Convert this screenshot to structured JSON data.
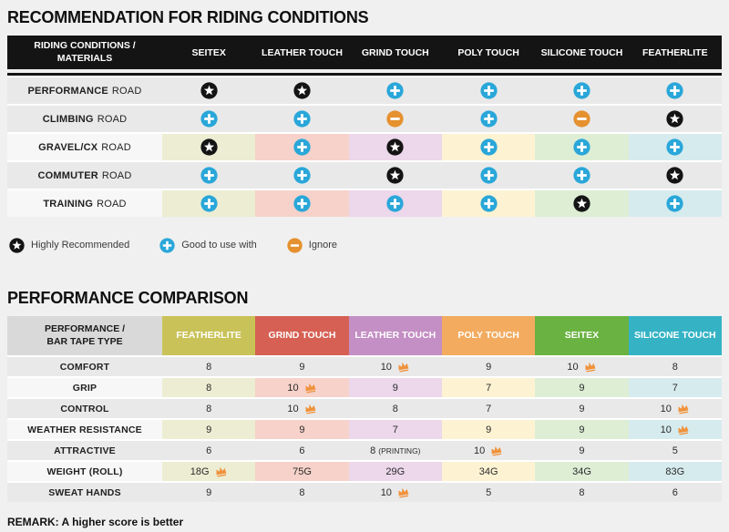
{
  "colors": {
    "page_bg": "#f0f0f0",
    "table_header_bg": "#141414",
    "row_gray": "#e9e9e9",
    "row_label_light": "#f7f7f7",
    "star": "#141414",
    "plus": "#2aa7d9",
    "minus": "#e5912f",
    "crown": "#f0923b",
    "t2_label_header_bg": "#d9d9d9"
  },
  "table1": {
    "title": "RECOMMENDATION FOR RIDING CONDITIONS",
    "header_label": "RIDING CONDITIONS /\nMATERIALS",
    "columns": [
      "SEITEX",
      "LEATHER TOUCH",
      "GRIND TOUCH",
      "POLY TOUCH",
      "SILICONE TOUCH",
      "FEATHERLITE"
    ],
    "column_tints": [
      "#ecedd2",
      "#f6d2ca",
      "#ecd7eb",
      "#fdf3d2",
      "#ddeed5",
      "#d6ebee"
    ],
    "rows": [
      {
        "label_bold": "PERFORMANCE",
        "label_rest": "ROAD",
        "tinted": false,
        "cells": [
          "star",
          "star",
          "plus",
          "plus",
          "plus",
          "plus"
        ]
      },
      {
        "label_bold": "CLIMBING",
        "label_rest": "ROAD",
        "tinted": false,
        "cells": [
          "plus",
          "plus",
          "minus",
          "plus",
          "minus",
          "star"
        ]
      },
      {
        "label_bold": "GRAVEL/CX",
        "label_rest": "ROAD",
        "tinted": true,
        "cells": [
          "star",
          "plus",
          "star",
          "plus",
          "plus",
          "plus"
        ]
      },
      {
        "label_bold": "COMMUTER",
        "label_rest": "ROAD",
        "tinted": false,
        "cells": [
          "plus",
          "plus",
          "star",
          "plus",
          "plus",
          "star"
        ]
      },
      {
        "label_bold": "TRAINING",
        "label_rest": "ROAD",
        "tinted": true,
        "cells": [
          "plus",
          "plus",
          "plus",
          "plus",
          "star",
          "plus"
        ]
      }
    ],
    "legend": [
      {
        "icon": "star",
        "label": "Highly Recommended"
      },
      {
        "icon": "plus",
        "label": "Good to use with"
      },
      {
        "icon": "minus",
        "label": "Ignore"
      }
    ]
  },
  "table2": {
    "title": "PERFORMANCE COMPARISON",
    "header_label": "PERFORMANCE /\nBAR TAPE TYPE",
    "columns": [
      {
        "name": "FEATHERLITE",
        "color": "#c9c258",
        "tint": "#ecedd2"
      },
      {
        "name": "GRIND TOUCH",
        "color": "#d66054",
        "tint": "#f6d2ca"
      },
      {
        "name": "LEATHER TOUCH",
        "color": "#c38fc4",
        "tint": "#ecd7eb"
      },
      {
        "name": "POLY TOUCH",
        "color": "#f2ab5f",
        "tint": "#fdf3d2"
      },
      {
        "name": "SEITEX",
        "color": "#6ab342",
        "tint": "#ddeed5"
      },
      {
        "name": "SILICONE TOUCH",
        "color": "#35b3c5",
        "tint": "#d6ebee"
      }
    ],
    "rows": [
      {
        "label": "COMFORT",
        "tinted": false,
        "cells": [
          {
            "v": "8"
          },
          {
            "v": "9"
          },
          {
            "v": "10",
            "crown": true
          },
          {
            "v": "9"
          },
          {
            "v": "10",
            "crown": true
          },
          {
            "v": "8"
          }
        ]
      },
      {
        "label": "GRIP",
        "tinted": true,
        "cells": [
          {
            "v": "8"
          },
          {
            "v": "10",
            "crown": true
          },
          {
            "v": "9"
          },
          {
            "v": "7"
          },
          {
            "v": "9"
          },
          {
            "v": "7"
          }
        ]
      },
      {
        "label": "CONTROL",
        "tinted": false,
        "cells": [
          {
            "v": "8"
          },
          {
            "v": "10",
            "crown": true
          },
          {
            "v": "8"
          },
          {
            "v": "7"
          },
          {
            "v": "9"
          },
          {
            "v": "10",
            "crown": true
          }
        ]
      },
      {
        "label": "WEATHER RESISTANCE",
        "tinted": true,
        "cells": [
          {
            "v": "9"
          },
          {
            "v": "9"
          },
          {
            "v": "7"
          },
          {
            "v": "9"
          },
          {
            "v": "9"
          },
          {
            "v": "10",
            "crown": true
          }
        ]
      },
      {
        "label": "ATTRACTIVE",
        "tinted": false,
        "cells": [
          {
            "v": "6"
          },
          {
            "v": "6"
          },
          {
            "v": "8",
            "suffix": "(PRINTING)"
          },
          {
            "v": "10",
            "crown": true
          },
          {
            "v": "9"
          },
          {
            "v": "5"
          }
        ]
      },
      {
        "label": "WEIGHT (ROLL)",
        "tinted": true,
        "cells": [
          {
            "v": "18G",
            "crown": true
          },
          {
            "v": "75G"
          },
          {
            "v": "29G"
          },
          {
            "v": "34G"
          },
          {
            "v": "34G"
          },
          {
            "v": "83G"
          }
        ]
      },
      {
        "label": "SWEAT HANDS",
        "tinted": false,
        "cells": [
          {
            "v": "9"
          },
          {
            "v": "8"
          },
          {
            "v": "10",
            "crown": true
          },
          {
            "v": "5"
          },
          {
            "v": "8"
          },
          {
            "v": "6"
          }
        ]
      }
    ],
    "remark": "REMARK: A higher score is better"
  },
  "chart_data": [
    {
      "type": "table",
      "title": "RECOMMENDATION FOR RIDING CONDITIONS",
      "columns": [
        "RIDING CONDITIONS / MATERIALS",
        "SEITEX",
        "LEATHER TOUCH",
        "GRIND TOUCH",
        "POLY TOUCH",
        "SILICONE TOUCH",
        "FEATHERLITE"
      ],
      "legend": {
        "star": "Highly Recommended",
        "plus": "Good to use with",
        "minus": "Ignore"
      },
      "rows": [
        [
          "PERFORMANCE ROAD",
          "star",
          "star",
          "plus",
          "plus",
          "plus",
          "plus"
        ],
        [
          "CLIMBING ROAD",
          "plus",
          "plus",
          "minus",
          "plus",
          "minus",
          "star"
        ],
        [
          "GRAVEL/CX ROAD",
          "star",
          "plus",
          "star",
          "plus",
          "plus",
          "plus"
        ],
        [
          "COMMUTER ROAD",
          "plus",
          "plus",
          "star",
          "plus",
          "plus",
          "star"
        ],
        [
          "TRAINING ROAD",
          "plus",
          "plus",
          "plus",
          "plus",
          "star",
          "plus"
        ]
      ]
    },
    {
      "type": "table",
      "title": "PERFORMANCE COMPARISON",
      "note": "REMARK: A higher score is better; crown marks best in row",
      "columns": [
        "PERFORMANCE / BAR TAPE TYPE",
        "FEATHERLITE",
        "GRIND TOUCH",
        "LEATHER TOUCH",
        "POLY TOUCH",
        "SEITEX",
        "SILICONE TOUCH"
      ],
      "rows": [
        [
          "COMFORT",
          "8",
          "9",
          "10 (crown)",
          "9",
          "10 (crown)",
          "8"
        ],
        [
          "GRIP",
          "8",
          "10 (crown)",
          "9",
          "7",
          "9",
          "7"
        ],
        [
          "CONTROL",
          "8",
          "10 (crown)",
          "8",
          "7",
          "9",
          "10 (crown)"
        ],
        [
          "WEATHER RESISTANCE",
          "9",
          "9",
          "7",
          "9",
          "9",
          "10 (crown)"
        ],
        [
          "ATTRACTIVE",
          "6",
          "6",
          "8 (PRINTING)",
          "10 (crown)",
          "9",
          "5"
        ],
        [
          "WEIGHT (ROLL)",
          "18G (crown)",
          "75G",
          "29G",
          "34G",
          "34G",
          "83G"
        ],
        [
          "SWEAT HANDS",
          "9",
          "8",
          "10 (crown)",
          "5",
          "8",
          "6"
        ]
      ]
    }
  ]
}
